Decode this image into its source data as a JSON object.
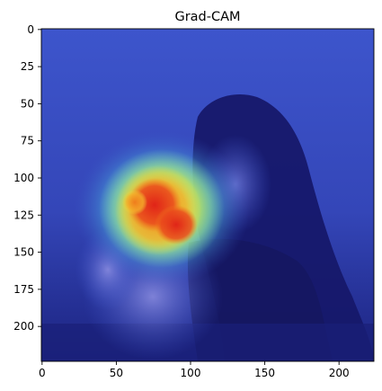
{
  "chart_data": {
    "type": "heatmap",
    "title": "Grad-CAM",
    "xlabel": "",
    "ylabel": "",
    "xlim": [
      0,
      224
    ],
    "ylim": [
      224,
      0
    ],
    "x_ticks": [
      0,
      50,
      100,
      150,
      200
    ],
    "y_ticks": [
      0,
      25,
      50,
      75,
      100,
      125,
      150,
      175,
      200
    ],
    "grid": false,
    "colormap": "jet",
    "overlay_description_free": true,
    "heat_peak": {
      "x": 80,
      "y": 118,
      "value": 1.0
    },
    "heat_secondary": [
      {
        "x": 92,
        "y": 130,
        "value": 0.9
      },
      {
        "x": 68,
        "y": 108,
        "value": 0.75
      },
      {
        "x": 110,
        "y": 112,
        "value": 0.55
      },
      {
        "x": 58,
        "y": 125,
        "value": 0.55
      }
    ]
  },
  "colors": {
    "background_blue": "#3a55c8",
    "dark_blue": "#141a6e",
    "hot_red": "#e8321e",
    "warm_orange": "#f08a20",
    "yellow": "#e8e040",
    "cyan": "#7ee0d8"
  }
}
